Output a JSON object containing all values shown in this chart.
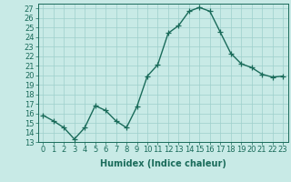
{
  "x": [
    0,
    1,
    2,
    3,
    4,
    5,
    6,
    7,
    8,
    9,
    10,
    11,
    12,
    13,
    14,
    15,
    16,
    17,
    18,
    19,
    20,
    21,
    22,
    23
  ],
  "y": [
    15.8,
    15.2,
    14.5,
    13.3,
    14.5,
    16.8,
    16.3,
    15.2,
    14.5,
    16.7,
    19.9,
    21.1,
    24.4,
    25.2,
    26.7,
    27.1,
    26.7,
    24.5,
    22.3,
    21.2,
    20.8,
    20.1,
    19.8,
    19.9
  ],
  "line_color": "#1a6b5a",
  "marker": "+",
  "markersize": 4,
  "linewidth": 1.0,
  "bg_color": "#c8eae6",
  "grid_color": "#9ecfcc",
  "xlabel": "Humidex (Indice chaleur)",
  "xlim": [
    -0.5,
    23.5
  ],
  "ylim": [
    13,
    27.5
  ],
  "yticks": [
    13,
    14,
    15,
    16,
    17,
    18,
    19,
    20,
    21,
    22,
    23,
    24,
    25,
    26,
    27
  ],
  "xticks": [
    0,
    1,
    2,
    3,
    4,
    5,
    6,
    7,
    8,
    9,
    10,
    11,
    12,
    13,
    14,
    15,
    16,
    17,
    18,
    19,
    20,
    21,
    22,
    23
  ],
  "xlabel_fontsize": 7,
  "tick_fontsize": 6,
  "xlabel_fontweight": "bold",
  "tick_color": "#1a6b5a",
  "label_color": "#1a6b5a"
}
